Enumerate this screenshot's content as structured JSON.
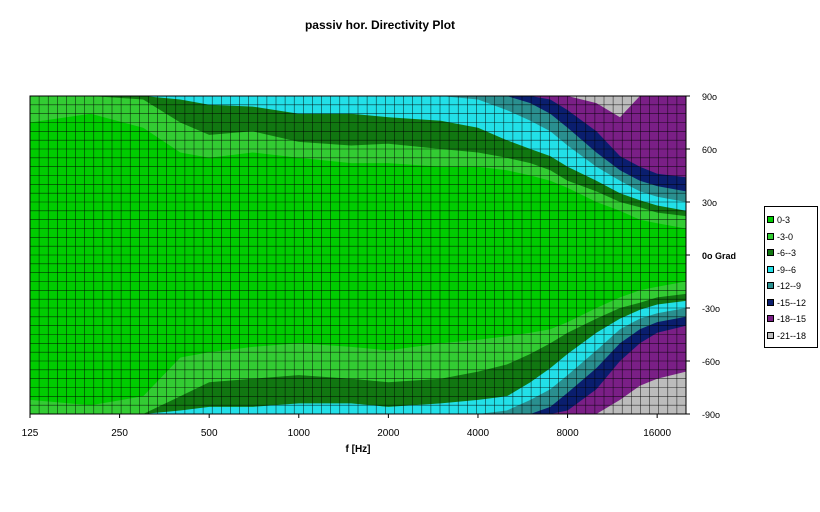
{
  "chart_data": {
    "type": "heatmap",
    "title": "passiv hor. Directivity Plot",
    "xlabel": "f [Hz]",
    "ylabel": "",
    "x_scale": "log",
    "x_range_hz": [
      125,
      20000
    ],
    "x_ticks": [
      {
        "value": 125,
        "label": "125"
      },
      {
        "value": 250,
        "label": "250"
      },
      {
        "value": 500,
        "label": "500"
      },
      {
        "value": 1000,
        "label": "1000"
      },
      {
        "value": 2000,
        "label": "2000"
      },
      {
        "value": 4000,
        "label": "4000"
      },
      {
        "value": 8000,
        "label": "8000"
      },
      {
        "value": 16000,
        "label": "16000"
      }
    ],
    "y_range_deg": [
      -90,
      90
    ],
    "y_ticks": [
      {
        "value": 90,
        "label": "90o"
      },
      {
        "value": 60,
        "label": "60o"
      },
      {
        "value": 30,
        "label": "30o"
      },
      {
        "value": 0,
        "label": "0o Grad"
      },
      {
        "value": -30,
        "label": "-30o"
      },
      {
        "value": -60,
        "label": "-60o"
      },
      {
        "value": -90,
        "label": "-90o"
      }
    ],
    "grid": true,
    "legend_position": "right",
    "levels": [
      {
        "label": "0-3",
        "min": -3,
        "color": "#00cc00"
      },
      {
        "label": "-3-0",
        "min": -6,
        "color": "#33cc33"
      },
      {
        "label": "-6--3",
        "min": -9,
        "color": "#117711"
      },
      {
        "label": "-9--6",
        "min": -12,
        "color": "#22e0e8"
      },
      {
        "label": "-12--9",
        "min": -15,
        "color": "#2a8f8f"
      },
      {
        "label": "-15--12",
        "min": -18,
        "color": "#0a1e6e"
      },
      {
        "label": "-18--15",
        "min": -21,
        "color": "#7a1f86"
      },
      {
        "label": "-21--18",
        "min": -99,
        "color": "#bcbcbc"
      }
    ],
    "contour_boundaries": {
      "upper": {
        "freq_hz": [
          125,
          200,
          300,
          400,
          500,
          700,
          1000,
          1500,
          2000,
          3000,
          4000,
          5000,
          6000,
          7000,
          8000,
          10000,
          12000,
          14000,
          16000,
          20000
        ],
        "neg3_deg": [
          75,
          80,
          72,
          58,
          55,
          58,
          55,
          52,
          52,
          50,
          50,
          48,
          45,
          42,
          38,
          30,
          25,
          20,
          18,
          15
        ],
        "neg6_deg": [
          90,
          90,
          88,
          75,
          68,
          70,
          64,
          62,
          63,
          60,
          58,
          55,
          52,
          48,
          42,
          36,
          30,
          27,
          24,
          22
        ],
        "neg9_deg": [
          90,
          90,
          90,
          88,
          85,
          84,
          80,
          80,
          78,
          76,
          72,
          65,
          60,
          56,
          50,
          42,
          35,
          31,
          28,
          25
        ],
        "neg12_deg": [
          90,
          90,
          90,
          90,
          90,
          90,
          90,
          90,
          90,
          90,
          88,
          82,
          76,
          70,
          62,
          50,
          42,
          36,
          33,
          30
        ],
        "neg15_deg": [
          90,
          90,
          90,
          90,
          90,
          90,
          90,
          90,
          90,
          90,
          90,
          90,
          86,
          80,
          72,
          58,
          48,
          42,
          39,
          36
        ],
        "neg18_deg": [
          90,
          90,
          90,
          90,
          90,
          90,
          90,
          90,
          90,
          90,
          90,
          90,
          90,
          88,
          82,
          70,
          56,
          50,
          46,
          44
        ],
        "neg21_deg": [
          90,
          90,
          90,
          90,
          90,
          90,
          90,
          90,
          90,
          90,
          90,
          90,
          90,
          90,
          90,
          86,
          78,
          90,
          90,
          90
        ]
      },
      "lower": {
        "freq_hz": [
          125,
          200,
          300,
          400,
          500,
          700,
          1000,
          1500,
          2000,
          3000,
          4000,
          5000,
          6000,
          7000,
          8000,
          10000,
          12000,
          14000,
          16000,
          20000
        ],
        "neg3_deg": [
          -82,
          -85,
          -80,
          -58,
          -55,
          -52,
          -50,
          -52,
          -54,
          -50,
          -48,
          -46,
          -44,
          -42,
          -38,
          -30,
          -24,
          -20,
          -18,
          -15
        ],
        "neg6_deg": [
          -90,
          -90,
          -90,
          -80,
          -72,
          -70,
          -68,
          -70,
          -72,
          -70,
          -66,
          -62,
          -56,
          -50,
          -44,
          -36,
          -30,
          -27,
          -24,
          -22
        ],
        "neg9_deg": [
          -90,
          -90,
          -90,
          -88,
          -86,
          -86,
          -84,
          -84,
          -86,
          -84,
          -82,
          -80,
          -72,
          -64,
          -56,
          -44,
          -36,
          -31,
          -28,
          -26
        ],
        "neg12_deg": [
          -90,
          -90,
          -90,
          -90,
          -90,
          -90,
          -90,
          -90,
          -90,
          -90,
          -90,
          -88,
          -82,
          -76,
          -68,
          -54,
          -42,
          -36,
          -33,
          -30
        ],
        "neg15_deg": [
          -90,
          -90,
          -90,
          -90,
          -90,
          -90,
          -90,
          -90,
          -90,
          -90,
          -90,
          -90,
          -90,
          -86,
          -78,
          -64,
          -50,
          -42,
          -38,
          -35
        ],
        "neg18_deg": [
          -90,
          -90,
          -90,
          -90,
          -90,
          -90,
          -90,
          -90,
          -90,
          -90,
          -90,
          -90,
          -90,
          -90,
          -88,
          -76,
          -60,
          -50,
          -44,
          -40
        ],
        "neg21_deg": [
          -90,
          -90,
          -90,
          -90,
          -90,
          -90,
          -90,
          -90,
          -90,
          -90,
          -90,
          -90,
          -90,
          -90,
          -90,
          -90,
          -82,
          -74,
          -70,
          -66
        ]
      }
    }
  }
}
